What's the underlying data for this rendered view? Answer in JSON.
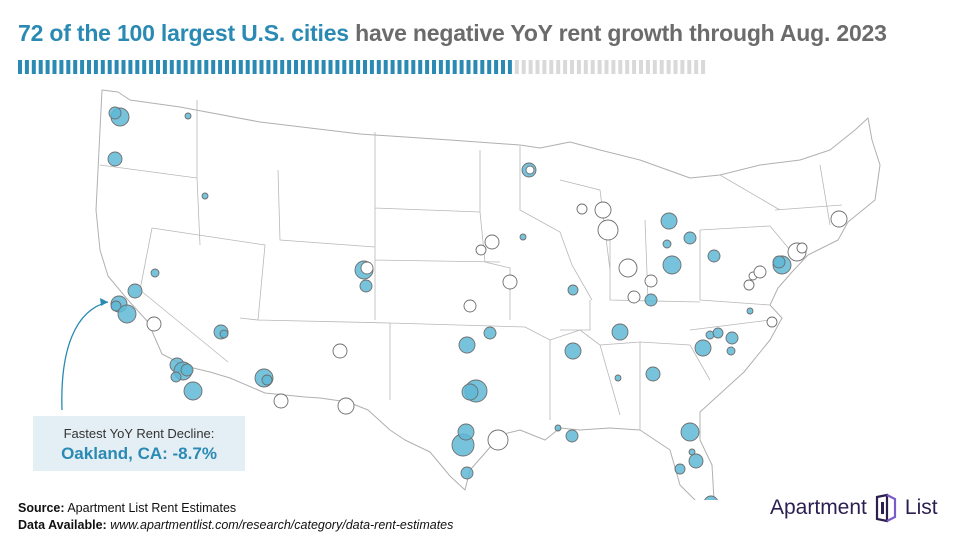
{
  "title": {
    "highlight": "72 of the 100 largest U.S. cities",
    "rest": "have negative YoY rent growth through Aug. 2023"
  },
  "progress": {
    "filled": 72,
    "total": 100,
    "filled_color": "#2a8ab4",
    "empty_color": "#d9d9d9"
  },
  "callout": {
    "label": "Fastest YoY Rent Decline:",
    "value": "Oakland, CA: -8.7%"
  },
  "footer": {
    "source_label": "Source:",
    "source_text": "Apartment List Rent Estimates",
    "data_label": "Data Available:",
    "data_text": "www.apartmentlist.com/research/category/data-rent-estimates"
  },
  "logo": {
    "left": "Apartment",
    "right": "List"
  },
  "colors": {
    "negative": "#5fb8d6",
    "positive": "#ffffff",
    "stroke": "#6e6e6e",
    "state_line": "#b0b0b0"
  }
}
